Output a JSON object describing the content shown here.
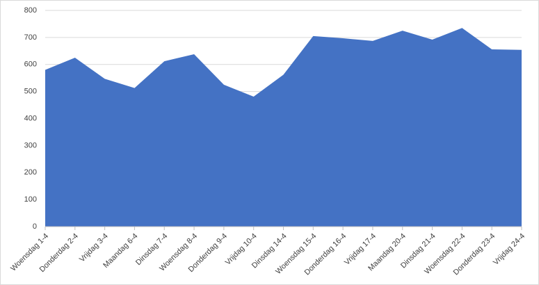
{
  "chart_data": {
    "type": "area",
    "categories": [
      "Woensdag 1-4",
      "Donderdag 2-4",
      "Vrijdag 3-4",
      "Maandag 6-4",
      "Dinsdag 7-4",
      "Woensdag 8-4",
      "Donderdag 9-4",
      "Vrijdag 10-4",
      "Dinsdag 14-4",
      "Woensdag 15-4",
      "Donderdag 16-4",
      "Vrijdag 17-4",
      "Maandag 20-4",
      "Dinsdag 21-4",
      "Woensdag 22-4",
      "Donderdag 23-4",
      "Vrijdag 24-4"
    ],
    "values": [
      580,
      625,
      547,
      513,
      612,
      638,
      525,
      481,
      562,
      705,
      697,
      687,
      725,
      692,
      735,
      656,
      654
    ],
    "color": "#4472c4",
    "ylim": [
      0,
      800
    ],
    "yticks": [
      0,
      100,
      200,
      300,
      400,
      500,
      600,
      700,
      800
    ],
    "grid": true
  }
}
